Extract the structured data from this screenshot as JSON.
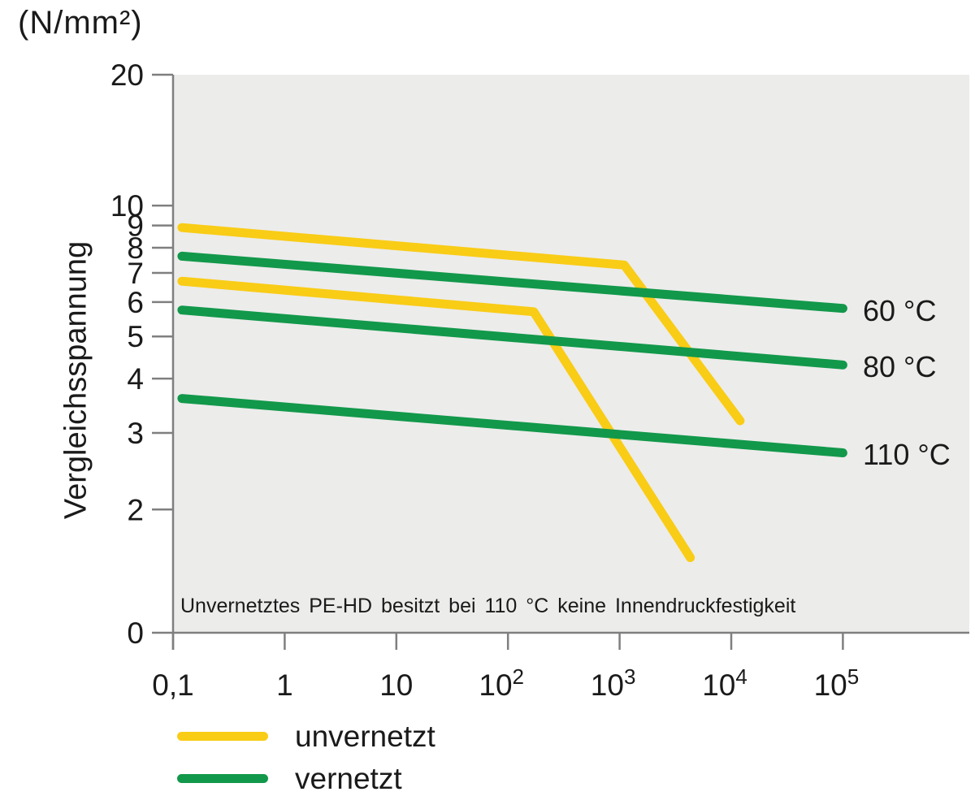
{
  "figure": {
    "y_unit": "(N/mm²)",
    "y_axis_title": "Vergleichsspannung",
    "colors": {
      "unvernetzt": "#F9CC16",
      "vernetzt": "#12984A",
      "plot_bg": "#ECECEB",
      "axis": "#7F7F7F",
      "text": "#1A1A1A"
    }
  },
  "chart_data": {
    "type": "line",
    "x_scale": "log",
    "y_scale": "log",
    "xlim": [
      0.1,
      1000000
    ],
    "ylim": [
      0,
      20
    ],
    "grid": false,
    "ylabel": "Vergleichsspannung",
    "y_unit": "(N/mm²)",
    "annotation": "Unvernetztes PE-HD besitzt bei 110 °C keine Innendruckfestigkeit",
    "x_ticks": [
      {
        "v": 0.1,
        "label": "0,1"
      },
      {
        "v": 1,
        "label": "1"
      },
      {
        "v": 10,
        "label": "10"
      },
      {
        "v": 100,
        "label": "10^2"
      },
      {
        "v": 1000,
        "label": "10^3"
      },
      {
        "v": 10000,
        "label": "10^4"
      },
      {
        "v": 100000,
        "label": "10^5"
      }
    ],
    "y_ticks": [
      {
        "v": 20,
        "label": "20"
      },
      {
        "v": 10,
        "label": "10"
      },
      {
        "v": 9,
        "label": "9"
      },
      {
        "v": 8,
        "label": "8"
      },
      {
        "v": 7,
        "label": "7"
      },
      {
        "v": 6,
        "label": "6"
      },
      {
        "v": 5,
        "label": "5"
      },
      {
        "v": 4,
        "label": "4"
      },
      {
        "v": 3,
        "label": "3"
      },
      {
        "v": 2,
        "label": "2"
      },
      {
        "v": 0,
        "label": "0"
      }
    ],
    "series": [
      {
        "name": "unvernetzt 60 °C",
        "group": "unvernetzt",
        "color_key": "unvernetzt",
        "points": [
          [
            0.12,
            8.9
          ],
          [
            1100,
            7.3
          ],
          [
            12000,
            3.2
          ]
        ]
      },
      {
        "name": "unvernetzt 80 °C",
        "group": "unvernetzt",
        "color_key": "unvernetzt",
        "points": [
          [
            0.12,
            6.7
          ],
          [
            170,
            5.7
          ],
          [
            4300,
            1.55
          ]
        ]
      },
      {
        "name": "vernetzt 60 °C",
        "group": "vernetzt",
        "color_key": "vernetzt",
        "temp_label": "60 °C",
        "points": [
          [
            0.12,
            7.65
          ],
          [
            100000,
            5.8
          ]
        ]
      },
      {
        "name": "vernetzt 80 °C",
        "group": "vernetzt",
        "color_key": "vernetzt",
        "temp_label": "80 °C",
        "points": [
          [
            0.12,
            5.75
          ],
          [
            100000,
            4.3
          ]
        ]
      },
      {
        "name": "vernetzt 110 °C",
        "group": "vernetzt",
        "color_key": "vernetzt",
        "temp_label": "110 °C",
        "points": [
          [
            0.12,
            3.6
          ],
          [
            100000,
            2.7
          ]
        ]
      }
    ],
    "legend": {
      "position": "bottom-left",
      "items": [
        {
          "label": "unvernetzt",
          "color_key": "unvernetzt"
        },
        {
          "label": "vernetzt",
          "color_key": "vernetzt"
        }
      ]
    }
  }
}
